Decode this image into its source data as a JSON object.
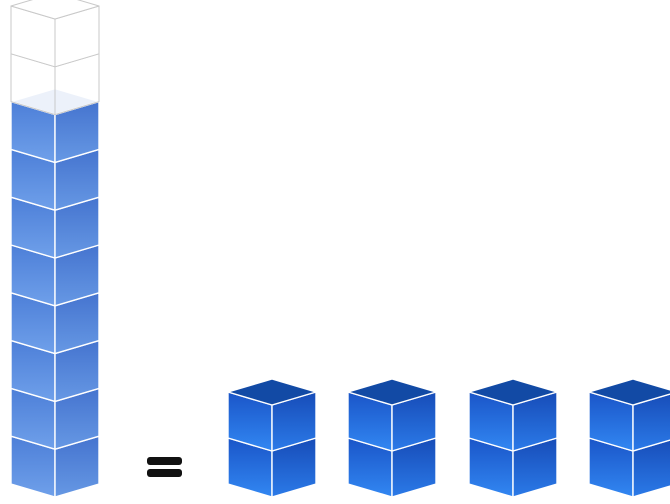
{
  "tower": {
    "total_cubes": 10,
    "filled_cubes": 8
  },
  "equation": {
    "symbol": "equals"
  },
  "stacks": [
    {
      "cubes": 2
    },
    {
      "cubes": 2
    },
    {
      "cubes": 2
    },
    {
      "cubes": 2
    }
  ],
  "colors": {
    "tower_front_light": "#6b9be6",
    "tower_front_dark": "#4f7fd6",
    "tower_top": "#3f70c8",
    "stack_front_light": "#2f7ef0",
    "stack_front_dark": "#1b5fd2",
    "stack_top": "#124aa5",
    "empty_edge": "#c9c9c9",
    "edge": "#ffffff",
    "equals": "#111111"
  }
}
